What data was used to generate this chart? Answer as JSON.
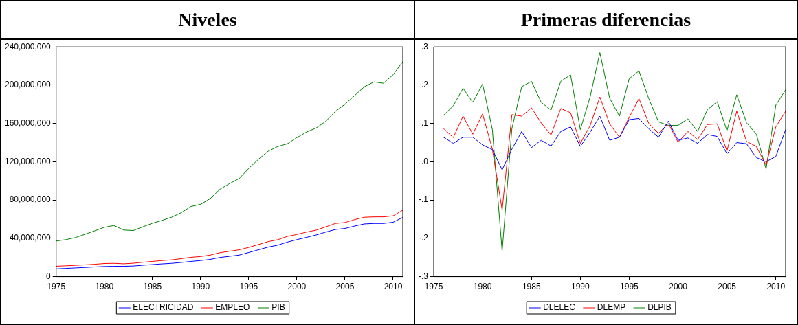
{
  "chart_data": [
    {
      "type": "line",
      "title": "Niveles",
      "x": [
        1975,
        1976,
        1977,
        1978,
        1979,
        1980,
        1981,
        1982,
        1983,
        1984,
        1985,
        1986,
        1987,
        1988,
        1989,
        1990,
        1991,
        1992,
        1993,
        1994,
        1995,
        1996,
        1997,
        1998,
        1999,
        2000,
        2001,
        2002,
        2003,
        2004,
        2005,
        2006,
        2007,
        2008,
        2009,
        2010,
        2011
      ],
      "series": [
        {
          "name": "ELECTRICIDAD",
          "color": "#0000ff",
          "values": [
            8100000,
            8600000,
            9100000,
            9600000,
            10100000,
            10600000,
            10800000,
            10800000,
            11100000,
            11900000,
            12600000,
            13300000,
            13900000,
            14800000,
            15900000,
            16800000,
            18000000,
            20000000,
            21200000,
            22500000,
            25200000,
            28000000,
            30800000,
            32800000,
            36000000,
            38600000,
            41000000,
            43500000,
            46500000,
            49200000,
            50300000,
            52800000,
            55000000,
            55500000,
            55500000,
            56800000,
            61800000
          ]
        },
        {
          "name": "EMPLEO",
          "color": "#ff0000",
          "values": [
            10900000,
            11300000,
            11800000,
            12300000,
            12900000,
            13700000,
            13900000,
            13400000,
            14000000,
            15000000,
            15900000,
            16800000,
            17500000,
            18800000,
            20200000,
            21000000,
            22500000,
            25000000,
            26500000,
            28000000,
            30500000,
            33500000,
            36500000,
            38500000,
            42000000,
            44000000,
            46500000,
            48500000,
            52000000,
            55500000,
            56500000,
            59500000,
            62000000,
            62400000,
            62400000,
            63500000,
            69400000
          ]
        },
        {
          "name": "PIB",
          "color": "#008000",
          "values": [
            37200000,
            38600000,
            40800000,
            44200000,
            47800000,
            51500000,
            53400000,
            48700000,
            48100000,
            52000000,
            55700000,
            58700000,
            62100000,
            66800000,
            73300000,
            75500000,
            81400000,
            91200000,
            97100000,
            102400000,
            113000000,
            122500000,
            130900000,
            135900000,
            138700000,
            145200000,
            151000000,
            155200000,
            162200000,
            172600000,
            180100000,
            189100000,
            198300000,
            203400000,
            202000000,
            210900000,
            224600000
          ]
        }
      ],
      "xlim": [
        1975,
        2011
      ],
      "xticks": [
        1975,
        1980,
        1985,
        1990,
        1995,
        2000,
        2005,
        2010
      ],
      "ylim": [
        0,
        240000000
      ],
      "yticks": [
        0,
        {
          "value": 40000000,
          "label": "40,000,000"
        },
        {
          "value": 80000000,
          "label": "80,000,000"
        },
        {
          "value": 120000000,
          "label": "120,000,000"
        },
        {
          "value": 160000000,
          "label": "160,000,000"
        },
        {
          "value": 200000000,
          "label": "200,000,000"
        },
        {
          "value": 240000000,
          "label": "240,000,000"
        }
      ],
      "grid": false,
      "legend": "bottom",
      "marker": "none",
      "line_style": "solid"
    },
    {
      "type": "line",
      "title": "Primeras diferencias",
      "x": [
        1976,
        1977,
        1978,
        1979,
        1980,
        1981,
        1982,
        1983,
        1984,
        1985,
        1986,
        1987,
        1988,
        1989,
        1990,
        1991,
        1992,
        1993,
        1994,
        1995,
        1996,
        1997,
        1998,
        1999,
        2000,
        2001,
        2002,
        2003,
        2004,
        2005,
        2006,
        2007,
        2008,
        2009,
        2010,
        2011
      ],
      "series": [
        {
          "name": "DLELEC",
          "color": "#0000ff",
          "values": [
            0.064,
            0.048,
            0.064,
            0.064,
            0.044,
            0.032,
            -0.021,
            0.033,
            0.079,
            0.037,
            0.056,
            0.041,
            0.079,
            0.091,
            0.04,
            0.077,
            0.119,
            0.056,
            0.064,
            0.11,
            0.113,
            0.086,
            0.064,
            0.106,
            0.056,
            0.062,
            0.048,
            0.071,
            0.066,
            0.021,
            0.05,
            0.047,
            0.011,
            0.0,
            0.014,
            0.084
          ]
        },
        {
          "name": "DLEMP",
          "color": "#ff0000",
          "values": [
            0.087,
            0.063,
            0.119,
            0.072,
            0.125,
            0.033,
            -0.126,
            0.123,
            0.119,
            0.141,
            0.101,
            0.07,
            0.139,
            0.128,
            0.048,
            0.094,
            0.169,
            0.099,
            0.064,
            0.116,
            0.165,
            0.1,
            0.074,
            0.1,
            0.051,
            0.079,
            0.058,
            0.097,
            0.099,
            0.028,
            0.132,
            0.053,
            0.04,
            -0.009,
            0.091,
            0.132
          ]
        },
        {
          "name": "DLPIB",
          "color": "#008000",
          "values": [
            0.121,
            0.146,
            0.192,
            0.155,
            0.203,
            0.084,
            -0.234,
            0.087,
            0.196,
            0.21,
            0.155,
            0.135,
            0.21,
            0.227,
            0.084,
            0.169,
            0.285,
            0.166,
            0.119,
            0.217,
            0.237,
            0.165,
            0.104,
            0.095,
            0.095,
            0.112,
            0.079,
            0.136,
            0.157,
            0.081,
            0.175,
            0.102,
            0.072,
            -0.019,
            0.148,
            0.188
          ]
        }
      ],
      "xlim": [
        1975,
        2011
      ],
      "xticks": [
        1975,
        1980,
        1985,
        1990,
        1995,
        2000,
        2005,
        2010
      ],
      "ylim": [
        -0.3,
        0.3
      ],
      "yticks": [
        {
          "value": -0.3,
          "label": "-.3"
        },
        {
          "value": -0.2,
          "label": "-.2"
        },
        {
          "value": -0.1,
          "label": "-.1"
        },
        {
          "value": 0,
          "label": ".0"
        },
        {
          "value": 0.1,
          "label": ".1"
        },
        {
          "value": 0.2,
          "label": ".2"
        },
        {
          "value": 0.3,
          "label": ".3"
        }
      ],
      "grid": false,
      "legend": "bottom",
      "marker": "none",
      "line_style": "solid"
    }
  ]
}
